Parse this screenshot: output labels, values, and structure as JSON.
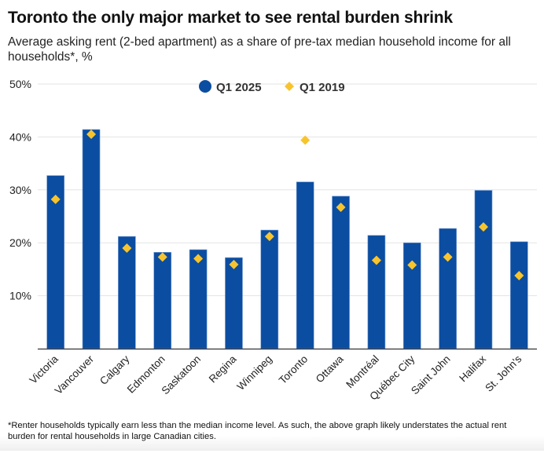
{
  "chart_data": {
    "type": "bar",
    "title": "Toronto the only major market to see rental burden shrink",
    "subtitle": "Average asking rent (2-bed apartment) as a share of pre-tax median household income for all households*, %",
    "xlabel": "",
    "ylabel": "",
    "ylim": [
      0,
      50
    ],
    "yticks": [
      10,
      20,
      30,
      40,
      50
    ],
    "ytick_labels": [
      "10%",
      "20%",
      "30%",
      "40%",
      "50%"
    ],
    "grid": true,
    "legend_position": "top-center",
    "categories": [
      "Victoria",
      "Vancouver",
      "Calgary",
      "Edmonton",
      "Saskatoon",
      "Regina",
      "Winnipeg",
      "Toronto",
      "Ottawa",
      "Montréal",
      "Québec City",
      "Saint John",
      "Halifax",
      "St. John's"
    ],
    "series": [
      {
        "name": "Q1 2025",
        "mark": "bar",
        "color": "#0B4DA1",
        "values": [
          32.7,
          41.4,
          21.2,
          18.2,
          18.7,
          17.2,
          22.4,
          31.5,
          28.8,
          21.4,
          20.0,
          22.7,
          29.9,
          20.2
        ]
      },
      {
        "name": "Q1 2019",
        "mark": "diamond",
        "color": "#F8C42D",
        "values": [
          28.2,
          40.5,
          19.0,
          17.3,
          17.0,
          15.9,
          21.2,
          39.4,
          26.7,
          16.7,
          15.8,
          17.3,
          23.0,
          13.8
        ]
      }
    ],
    "footnote": "*Renter households typically earn less than the median income level. As such, the above graph likely understates the actual rent burden for rental households in large Canadian cities."
  }
}
